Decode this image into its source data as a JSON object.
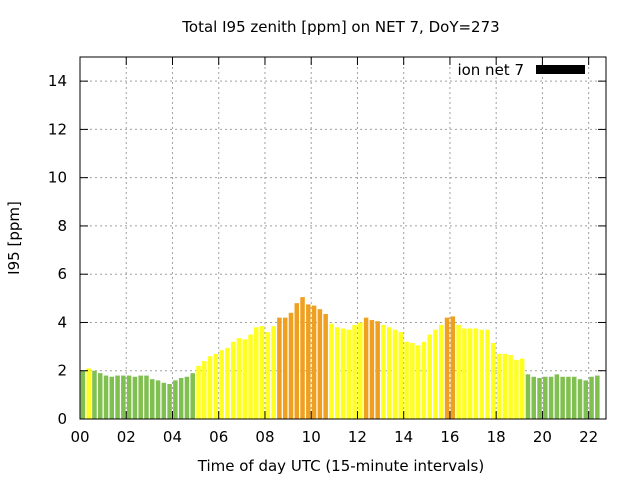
{
  "chart_data": {
    "type": "bar",
    "title": "Total I95 zenith [ppm] on NET 7, DoY=273",
    "xlabel": "Time of day UTC (15-minute intervals)",
    "ylabel": "I95 [ppm]",
    "xlim": [
      0,
      22.75
    ],
    "ylim": [
      0,
      15
    ],
    "x_ticks": [
      0,
      2,
      4,
      6,
      8,
      10,
      12,
      14,
      16,
      18,
      20,
      22
    ],
    "x_tick_labels": [
      "00",
      "02",
      "04",
      "06",
      "08",
      "10",
      "12",
      "14",
      "16",
      "18",
      "20",
      "22"
    ],
    "y_ticks": [
      0,
      2,
      4,
      6,
      8,
      10,
      12,
      14
    ],
    "y_tick_labels": [
      "0",
      "2",
      "4",
      "6",
      "8",
      "10",
      "12",
      "14"
    ],
    "grid": true,
    "bar_interval_hours": 0.25,
    "legend": {
      "position": "top-right",
      "entries": [
        {
          "label": "ion net 7",
          "color": "#000000"
        }
      ]
    },
    "color_scale": {
      "green": {
        "color": "#80c050",
        "max": 2
      },
      "yellow": {
        "color": "#ffff20",
        "max": 4
      },
      "orange": {
        "color": "#f0a020"
      }
    },
    "series": [
      {
        "values": [
          2.0,
          2.1,
          2.0,
          1.9,
          1.8,
          1.75,
          1.8,
          1.8,
          1.8,
          1.75,
          1.8,
          1.8,
          1.65,
          1.6,
          1.5,
          1.45,
          1.6,
          1.7,
          1.75,
          1.9,
          2.2,
          2.4,
          2.6,
          2.7,
          2.85,
          2.95,
          3.2,
          3.35,
          3.3,
          3.5,
          3.8,
          3.85,
          3.6,
          3.85,
          4.2,
          4.2,
          4.4,
          4.8,
          5.05,
          4.75,
          4.7,
          4.55,
          4.35,
          3.95,
          3.8,
          3.75,
          3.7,
          3.9,
          4.0,
          4.2,
          4.1,
          4.05,
          3.9,
          3.8,
          3.7,
          3.6,
          3.2,
          3.15,
          3.05,
          3.2,
          3.5,
          3.7,
          3.9,
          4.2,
          4.25,
          3.9,
          3.75,
          3.75,
          3.75,
          3.7,
          3.7,
          3.15,
          2.7,
          2.7,
          2.65,
          2.45,
          2.5,
          1.85,
          1.75,
          1.7,
          1.75,
          1.75,
          1.85,
          1.75,
          1.75,
          1.75,
          1.65,
          1.6,
          1.75,
          1.8
        ]
      }
    ]
  }
}
